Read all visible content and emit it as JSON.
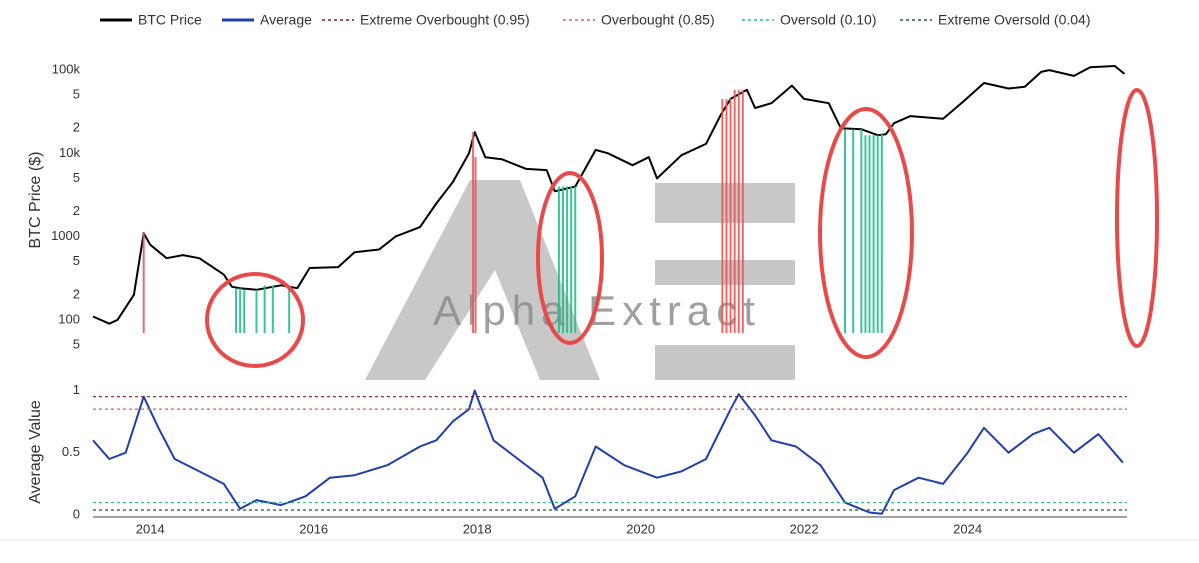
{
  "chart_data": {
    "type": "line",
    "watermark": "Alpha Extract",
    "ylabel": "BTC Price ($)",
    "y2label": "Average Value",
    "log_y": true,
    "xlim": [
      2013.3,
      2025.95
    ],
    "xticks": [
      2014,
      2016,
      2018,
      2020,
      2022,
      2024
    ],
    "ylim": [
      33,
      200000
    ],
    "yticks": [
      {
        "value": 100000,
        "label": "100k"
      },
      {
        "value": 50000,
        "label": "5"
      },
      {
        "value": 20000,
        "label": "2"
      },
      {
        "value": 10000,
        "label": "10k"
      },
      {
        "value": 5000,
        "label": "5"
      },
      {
        "value": 2000,
        "label": "2"
      },
      1000,
      {
        "value": 500,
        "label": "5"
      },
      {
        "value": 200,
        "label": "2"
      },
      100,
      {
        "value": 50,
        "label": "5"
      }
    ],
    "y2lim": [
      -0.04,
      1.06
    ],
    "y2ticks": [
      0,
      0.5,
      1
    ],
    "series": [
      {
        "name": "BTC Price",
        "color": "#000000",
        "axis": "y",
        "x": [
          2013.3,
          2013.5,
          2013.6,
          2013.8,
          2013.92,
          2014.0,
          2014.2,
          2014.4,
          2014.6,
          2014.9,
          2015.0,
          2015.1,
          2015.3,
          2015.6,
          2015.8,
          2015.95,
          2016.3,
          2016.5,
          2016.8,
          2017.0,
          2017.3,
          2017.5,
          2017.7,
          2017.9,
          2017.97,
          2018.1,
          2018.3,
          2018.6,
          2018.85,
          2018.95,
          2019.2,
          2019.45,
          2019.6,
          2019.9,
          2020.1,
          2020.2,
          2020.5,
          2020.8,
          2020.98,
          2021.1,
          2021.3,
          2021.4,
          2021.6,
          2021.85,
          2022.0,
          2022.3,
          2022.45,
          2022.7,
          2022.9,
          2023.0,
          2023.1,
          2023.3,
          2023.7,
          2023.95,
          2024.2,
          2024.5,
          2024.7,
          2024.9,
          2025.0,
          2025.3,
          2025.5,
          2025.8,
          2025.92
        ],
        "values": [
          110,
          90,
          100,
          200,
          1100,
          800,
          550,
          600,
          550,
          350,
          250,
          240,
          230,
          260,
          240,
          420,
          430,
          650,
          700,
          1000,
          1300,
          2500,
          4500,
          10000,
          18000,
          9000,
          8500,
          6500,
          6300,
          3500,
          4000,
          11000,
          10000,
          7200,
          9000,
          5000,
          9500,
          13000,
          29000,
          45000,
          58000,
          35000,
          40000,
          65000,
          45000,
          40000,
          20000,
          19500,
          16500,
          17000,
          23000,
          28000,
          26000,
          42000,
          70000,
          60000,
          63000,
          95000,
          100000,
          85000,
          108000,
          112000,
          90000
        ]
      },
      {
        "name": "Average",
        "color": "#1f3fae",
        "axis": "y2",
        "x": [
          2013.3,
          2013.5,
          2013.7,
          2013.92,
          2014.1,
          2014.3,
          2014.6,
          2014.9,
          2015.1,
          2015.3,
          2015.6,
          2015.9,
          2016.2,
          2016.5,
          2016.9,
          2017.3,
          2017.5,
          2017.7,
          2017.9,
          2017.97,
          2018.2,
          2018.5,
          2018.8,
          2018.95,
          2019.2,
          2019.45,
          2019.8,
          2020.2,
          2020.5,
          2020.8,
          2021.1,
          2021.2,
          2021.4,
          2021.6,
          2021.9,
          2022.2,
          2022.5,
          2022.8,
          2022.95,
          2023.1,
          2023.4,
          2023.7,
          2024.0,
          2024.2,
          2024.5,
          2024.8,
          2025.0,
          2025.3,
          2025.6,
          2025.9
        ],
        "values": [
          0.6,
          0.45,
          0.5,
          0.95,
          0.7,
          0.45,
          0.35,
          0.25,
          0.05,
          0.12,
          0.08,
          0.15,
          0.3,
          0.32,
          0.4,
          0.55,
          0.6,
          0.75,
          0.85,
          1.0,
          0.6,
          0.45,
          0.3,
          0.05,
          0.15,
          0.55,
          0.4,
          0.3,
          0.35,
          0.45,
          0.85,
          0.97,
          0.8,
          0.6,
          0.55,
          0.4,
          0.1,
          0.02,
          0.01,
          0.2,
          0.3,
          0.25,
          0.5,
          0.7,
          0.5,
          0.65,
          0.7,
          0.5,
          0.65,
          0.42
        ]
      },
      {
        "name": "Extreme Overbought (0.95)",
        "color": "#8b1a1a",
        "axis": "y2",
        "threshold": 0.95
      },
      {
        "name": "Overbought (0.85)",
        "color": "#e85a5a",
        "axis": "y2",
        "threshold": 0.85,
        "signal_x": [
          2013.92,
          2017.95,
          2017.98,
          2021.0,
          2021.05,
          2021.1,
          2021.15,
          2021.2,
          2021.25
        ]
      },
      {
        "name": "Oversold (0.10)",
        "color": "#22c08a",
        "axis": "y2",
        "threshold": 0.1,
        "signal_x": [
          2015.05,
          2015.1,
          2015.15,
          2015.3,
          2015.4,
          2015.5,
          2015.7,
          2019.0,
          2019.05,
          2019.1,
          2019.15,
          2019.2,
          2022.5,
          2022.6,
          2022.7,
          2022.75,
          2022.8,
          2022.85,
          2022.9,
          2022.95
        ]
      },
      {
        "name": "Extreme Oversold (0.04)",
        "color": "#1e5e2e",
        "axis": "y2",
        "threshold": 0.04
      }
    ]
  }
}
